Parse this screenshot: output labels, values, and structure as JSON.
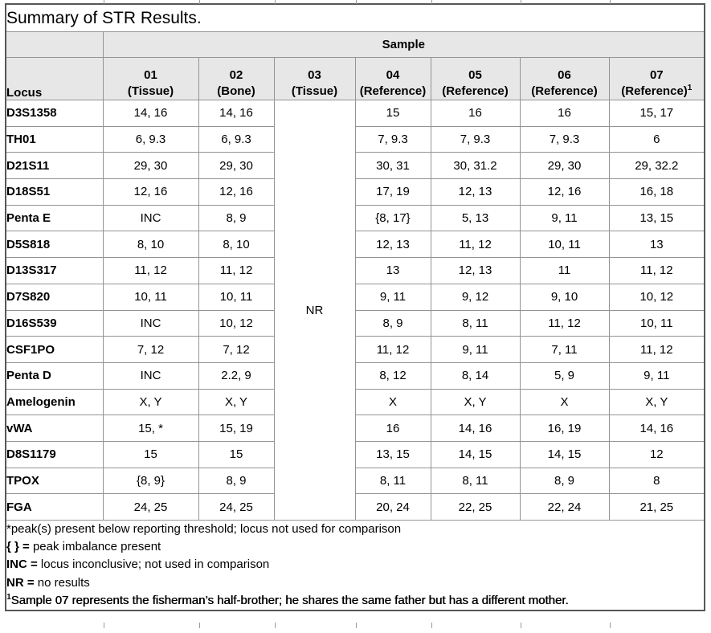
{
  "title": "Summary of STR Results.",
  "table": {
    "group_header": "Sample",
    "locus_header": "Locus",
    "columns": [
      {
        "id": "01",
        "label": "(Tissue)",
        "sup": ""
      },
      {
        "id": "02",
        "label": "(Bone)",
        "sup": ""
      },
      {
        "id": "03",
        "label": "(Tissue)",
        "sup": ""
      },
      {
        "id": "04",
        "label": "(Reference)",
        "sup": ""
      },
      {
        "id": "05",
        "label": "(Reference)",
        "sup": ""
      },
      {
        "id": "06",
        "label": "(Reference)",
        "sup": ""
      },
      {
        "id": "07",
        "label": "(Reference)",
        "sup": "1"
      }
    ],
    "no_result": {
      "column_id": "03",
      "value": "NR"
    },
    "rows": [
      {
        "locus": "D3S1358",
        "values": {
          "01": "14, 16",
          "02": "14, 16",
          "04": "15",
          "05": "16",
          "06": "16",
          "07": "15, 17"
        }
      },
      {
        "locus": "TH01",
        "values": {
          "01": "6, 9.3",
          "02": "6, 9.3",
          "04": "7, 9.3",
          "05": "7, 9.3",
          "06": "7, 9.3",
          "07": "6"
        }
      },
      {
        "locus": "D21S11",
        "values": {
          "01": "29, 30",
          "02": "29, 30",
          "04": "30, 31",
          "05": "30, 31.2",
          "06": "29, 30",
          "07": "29, 32.2"
        }
      },
      {
        "locus": "D18S51",
        "values": {
          "01": "12, 16",
          "02": "12, 16",
          "04": "17, 19",
          "05": "12, 13",
          "06": "12, 16",
          "07": "16, 18"
        }
      },
      {
        "locus": "Penta E",
        "values": {
          "01": "INC",
          "02": "8, 9",
          "04": "{8, 17}",
          "05": "5, 13",
          "06": "9, 11",
          "07": "13, 15"
        }
      },
      {
        "locus": "D5S818",
        "values": {
          "01": "8, 10",
          "02": "8, 10",
          "04": "12, 13",
          "05": "11, 12",
          "06": "10, 11",
          "07": "13"
        }
      },
      {
        "locus": "D13S317",
        "values": {
          "01": "11, 12",
          "02": "11, 12",
          "04": "13",
          "05": "12, 13",
          "06": "11",
          "07": "11, 12"
        }
      },
      {
        "locus": "D7S820",
        "values": {
          "01": "10, 11",
          "02": "10, 11",
          "04": "9, 11",
          "05": "9, 12",
          "06": "9, 10",
          "07": "10, 12"
        }
      },
      {
        "locus": "D16S539",
        "values": {
          "01": "INC",
          "02": "10, 12",
          "04": "8, 9",
          "05": "8, 11",
          "06": "11, 12",
          "07": "10, 11"
        }
      },
      {
        "locus": "CSF1PO",
        "values": {
          "01": "7, 12",
          "02": "7, 12",
          "04": "11, 12",
          "05": "9, 11",
          "06": "7, 11",
          "07": "11, 12"
        }
      },
      {
        "locus": "Penta D",
        "values": {
          "01": "INC",
          "02": "2.2, 9",
          "04": "8, 12",
          "05": "8, 14",
          "06": "5, 9",
          "07": "9, 11"
        }
      },
      {
        "locus": "Amelogenin",
        "values": {
          "01": "X, Y",
          "02": "X, Y",
          "04": "X",
          "05": "X, Y",
          "06": "X",
          "07": "X, Y"
        }
      },
      {
        "locus": "vWA",
        "values": {
          "01": "15, *",
          "02": "15, 19",
          "04": "16",
          "05": "14, 16",
          "06": "16, 19",
          "07": "14, 16"
        }
      },
      {
        "locus": "D8S1179",
        "values": {
          "01": "15",
          "02": "15",
          "04": "13, 15",
          "05": "14, 15",
          "06": "14, 15",
          "07": "12"
        }
      },
      {
        "locus": "TPOX",
        "values": {
          "01": "{8, 9}",
          "02": "8, 9",
          "04": "8, 11",
          "05": "8, 11",
          "06": "8, 9",
          "07": "8"
        }
      },
      {
        "locus": "FGA",
        "values": {
          "01": "24, 25",
          "02": "24, 25",
          "04": "20, 24",
          "05": "22, 25",
          "06": "22, 24",
          "07": "21, 25"
        }
      }
    ]
  },
  "footnotes": [
    {
      "sup_prefix": "",
      "bold_prefix": "",
      "text": "*peak(s) present below reporting threshold; locus not used for comparison",
      "semibold": false
    },
    {
      "sup_prefix": "",
      "bold_prefix": "{ } =",
      "text": " peak imbalance present",
      "semibold": false
    },
    {
      "sup_prefix": "",
      "bold_prefix": "INC =",
      "text": " locus inconclusive; not used in comparison",
      "semibold": false
    },
    {
      "sup_prefix": "",
      "bold_prefix": "NR =",
      "text": " no results",
      "semibold": false
    },
    {
      "sup_prefix": "1",
      "bold_prefix": "",
      "text": "Sample 07 represents the fisherman’s half-brother; he shares the same father but has a different mother.",
      "semibold": true
    }
  ]
}
